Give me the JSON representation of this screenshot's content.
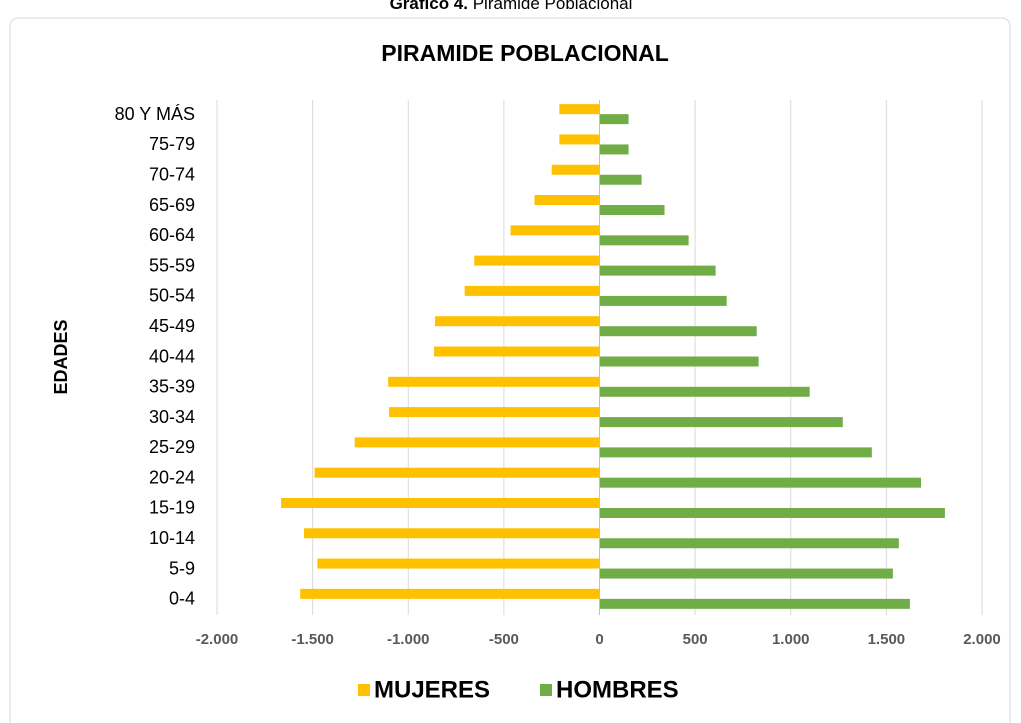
{
  "chart_data": {
    "type": "bar",
    "orientation": "horizontal",
    "figure_number": "Gráfico 4.",
    "figure_title": "Piramide Poblacional",
    "title": "PIRAMIDE POBLACIONAL",
    "y_label": "EDADES",
    "categories": [
      "0-4",
      "5-9",
      "10-14",
      "15-19",
      "20-24",
      "25-29",
      "30-34",
      "35-39",
      "40-44",
      "45-49",
      "50-54",
      "55-59",
      "60-64",
      "65-69",
      "70-74",
      "75-79",
      "80 Y MÁS"
    ],
    "series": [
      {
        "name": "MUJERES",
        "color": "#FFC000",
        "values": [
          -1565,
          -1475,
          -1545,
          -1665,
          -1490,
          -1280,
          -1100,
          -1105,
          -865,
          -860,
          -705,
          -655,
          -465,
          -340,
          -250,
          -210,
          -210
        ]
      },
      {
        "name": "HOMBRES",
        "color": "#70AD47",
        "values": [
          1623,
          1534,
          1565,
          1806,
          1681,
          1424,
          1272,
          1099,
          832,
          822,
          665,
          607,
          466,
          340,
          220,
          152,
          152
        ]
      }
    ],
    "xlim": [
      -2000,
      2000
    ],
    "xticks": [
      {
        "value": -2000,
        "label": "-2.000"
      },
      {
        "value": -1500,
        "label": "-1.500"
      },
      {
        "value": -1000,
        "label": "-1.000"
      },
      -500,
      0,
      500,
      {
        "value": 1000,
        "label": "1.000"
      },
      {
        "value": 1500,
        "label": "1.500"
      },
      {
        "value": 2000,
        "label": "2.000"
      }
    ],
    "grid": true,
    "legend": "bottom"
  }
}
